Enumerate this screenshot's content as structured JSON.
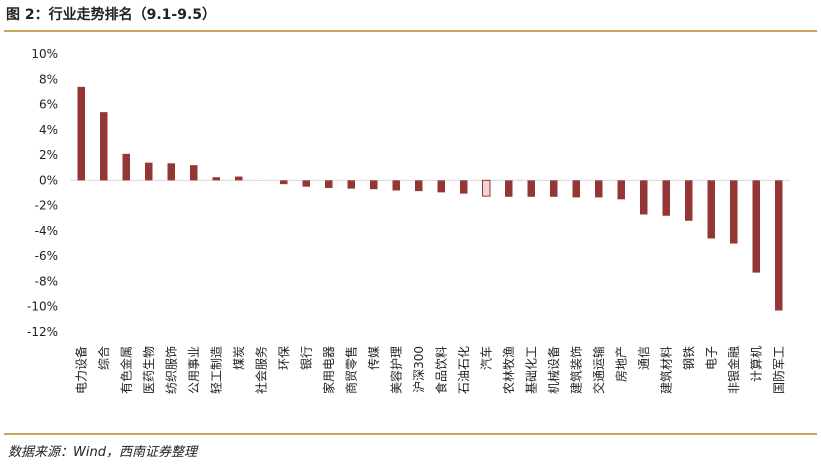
{
  "header": {
    "title": "图 2：行业走势排名（9.1-9.5）"
  },
  "footer": {
    "source": "数据来源：Wind，西南证券整理"
  },
  "colors": {
    "bar": "#943634",
    "highlight_fill": "#f2d4d4",
    "highlight_stroke": "#943634",
    "rule": "#c9a35a",
    "axis": "#d9d9d9"
  },
  "chart_data": {
    "type": "bar",
    "title": "",
    "xlabel": "",
    "ylabel": "",
    "ylim": [
      -12,
      10
    ],
    "yticks": [
      "10%",
      "8%",
      "6%",
      "4%",
      "2%",
      "0%",
      "-2%",
      "-4%",
      "-6%",
      "-8%",
      "-10%",
      "-12%"
    ],
    "ytick_values": [
      10,
      8,
      6,
      4,
      2,
      0,
      -2,
      -4,
      -6,
      -8,
      -10,
      -12
    ],
    "categories": [
      "电力设备",
      "综合",
      "有色金属",
      "医药生物",
      "纺织服饰",
      "公用事业",
      "轻工制造",
      "煤炭",
      "社会服务",
      "环保",
      "银行",
      "家用电器",
      "商贸零售",
      "传媒",
      "美容护理",
      "沪深300",
      "食品饮料",
      "石油石化",
      "汽车",
      "农林牧渔",
      "基础化工",
      "机械设备",
      "建筑装饰",
      "交通运输",
      "房地产",
      "通信",
      "建筑材料",
      "钢铁",
      "电子",
      "非银金融",
      "计算机",
      "国防军工"
    ],
    "values": [
      7.4,
      5.4,
      2.1,
      1.4,
      1.35,
      1.2,
      0.25,
      0.3,
      0.0,
      -0.3,
      -0.5,
      -0.6,
      -0.65,
      -0.7,
      -0.8,
      -0.85,
      -0.95,
      -1.05,
      -1.25,
      -1.3,
      -1.3,
      -1.3,
      -1.35,
      -1.35,
      -1.5,
      -2.7,
      -2.8,
      -3.2,
      -4.6,
      -5.0,
      -7.3,
      -10.3
    ],
    "highlight_category": "汽车",
    "grid": false,
    "legend": "none"
  }
}
